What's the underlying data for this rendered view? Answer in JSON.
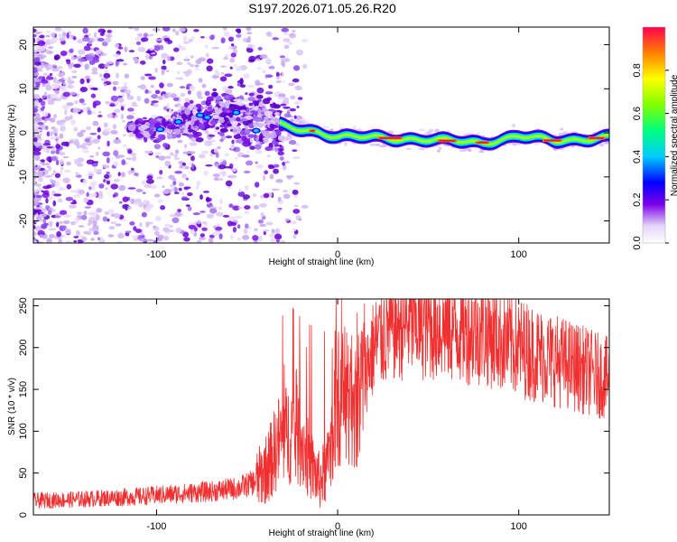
{
  "title": "S197.2026.071.05.26.R20",
  "chart_data": [
    {
      "type": "heatmap",
      "name": "spectrogram",
      "xlabel": "Height of straight line (km)",
      "ylabel": "Frequency (Hz)",
      "xlim": [
        -168,
        150
      ],
      "ylim": [
        -25,
        24
      ],
      "xticks": [
        -100,
        0,
        100
      ],
      "yticks": [
        -20,
        -10,
        0,
        10,
        20
      ],
      "colorbar": {
        "label": "Normalized spectral amplitude",
        "range": [
          0,
          1
        ],
        "ticks": [
          0.0,
          0.2,
          0.4,
          0.6,
          0.8
        ],
        "tick_labels": [
          "0.0",
          "0.2",
          "0.4",
          "0.6",
          "0.8"
        ]
      },
      "ridge": [
        {
          "x": -100,
          "y": 0.8
        },
        {
          "x": -80,
          "y": 3.5
        },
        {
          "x": -55,
          "y": 4.5
        },
        {
          "x": -30,
          "y": 1.5
        },
        {
          "x": -10,
          "y": 0.2
        },
        {
          "x": 0,
          "y": -1.0
        },
        {
          "x": 20,
          "y": -1.0
        },
        {
          "x": 60,
          "y": -1.8
        },
        {
          "x": 80,
          "y": -2.2
        },
        {
          "x": 100,
          "y": -0.8
        },
        {
          "x": 120,
          "y": -1.8
        },
        {
          "x": 150,
          "y": -1.0
        }
      ]
    },
    {
      "type": "line",
      "name": "snr",
      "xlabel": "Height of straight line (km)",
      "ylabel": "SNR (10 * v/v)",
      "xlim": [
        -168,
        150
      ],
      "ylim": [
        0,
        258
      ],
      "xticks": [
        -100,
        0,
        100
      ],
      "yticks": [
        0,
        50,
        100,
        150,
        200,
        250
      ],
      "series": [
        {
          "name": "SNR",
          "color": "#f03030",
          "x": [
            -168,
            -150,
            -130,
            -110,
            -90,
            -70,
            -55,
            -45,
            -38,
            -32,
            -25,
            -20,
            -15,
            -10,
            -5,
            0,
            5,
            10,
            15,
            20,
            25,
            30,
            40,
            50,
            60,
            70,
            80,
            90,
            100,
            110,
            120,
            130,
            140,
            150
          ],
          "values": [
            17,
            18,
            20,
            22,
            25,
            28,
            32,
            40,
            60,
            90,
            100,
            90,
            60,
            40,
            60,
            140,
            145,
            130,
            170,
            200,
            215,
            225,
            230,
            228,
            225,
            222,
            220,
            210,
            200,
            192,
            185,
            178,
            170,
            162
          ]
        }
      ]
    }
  ]
}
